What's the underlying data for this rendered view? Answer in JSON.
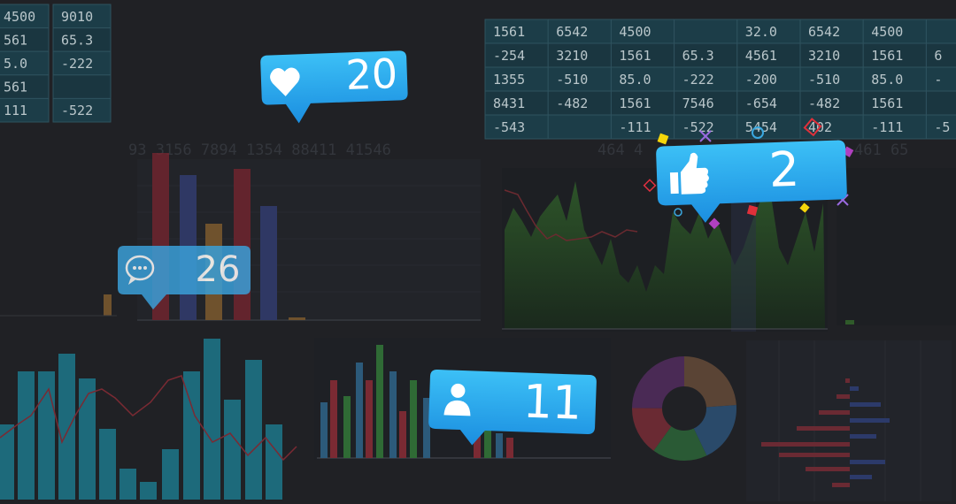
{
  "background_text": [
    "93 3156 7894 1354 88411 41546",
    "464 4",
    "461 65"
  ],
  "left_table": {
    "rows": [
      [
        "4500",
        "9010"
      ],
      [
        "561",
        "65.3"
      ],
      [
        "5.0",
        "-222"
      ],
      [
        "561",
        null
      ],
      [
        "111",
        "-522"
      ]
    ]
  },
  "right_table": {
    "rows": [
      [
        "1561",
        "6542",
        "4500",
        null,
        "32.0",
        "6542",
        "4500",
        null
      ],
      [
        "-254",
        "3210",
        "1561",
        "65.3",
        "4561",
        "3210",
        "1561",
        "6"
      ],
      [
        "1355",
        "-510",
        "85.0",
        "-222",
        "-200",
        "-510",
        "85.0",
        "-"
      ],
      [
        "8431",
        "-482",
        "1561",
        "7546",
        "-654",
        "-482",
        "1561",
        null
      ],
      [
        "-543",
        null,
        "-111",
        "-522",
        "5454",
        "402",
        "-111",
        "-5"
      ]
    ]
  },
  "notifications": {
    "likes": "20",
    "comments": "26",
    "thumbs_up": "2",
    "followers": "11"
  }
}
